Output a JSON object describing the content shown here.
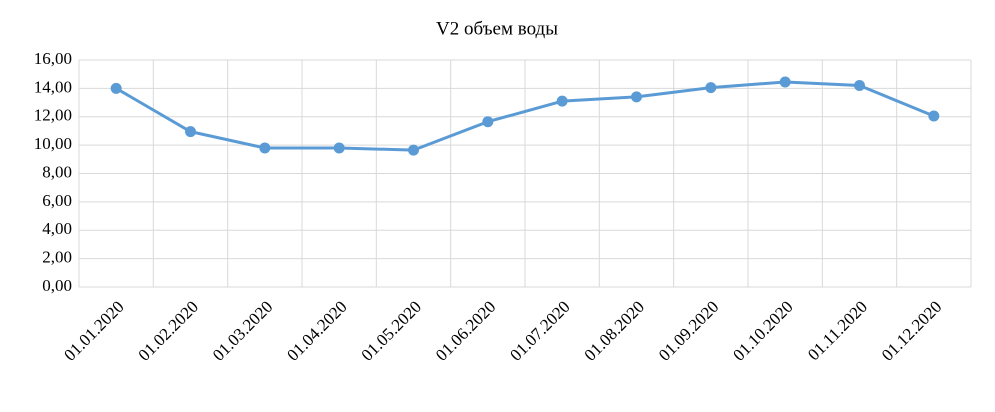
{
  "chart_data": {
    "type": "line",
    "title": "V2 объем воды",
    "categories": [
      "01.01.2020",
      "01.02.2020",
      "01.03.2020",
      "01.04.2020",
      "01.05.2020",
      "01.06.2020",
      "01.07.2020",
      "01.08.2020",
      "01.09.2020",
      "01.10.2020",
      "01.11.2020",
      "01.12.2020"
    ],
    "series": [
      {
        "color": "#5b9bd5",
        "values": [
          14.0,
          10.95,
          9.8,
          9.8,
          9.65,
          11.65,
          13.1,
          13.4,
          14.05,
          14.45,
          14.2,
          12.05
        ]
      }
    ],
    "ylim": [
      0,
      16
    ],
    "yticks": [
      {
        "value": 0,
        "label": "0,00"
      },
      {
        "value": 2,
        "label": "2,00"
      },
      {
        "value": 4,
        "label": "4,00"
      },
      {
        "value": 6,
        "label": "6,00"
      },
      {
        "value": 8,
        "label": "8,00"
      },
      {
        "value": 10,
        "label": "10,00"
      },
      {
        "value": 12,
        "label": "12,00"
      },
      {
        "value": 14,
        "label": "14,00"
      },
      {
        "value": 16,
        "label": "16,00"
      }
    ],
    "grid": true
  }
}
